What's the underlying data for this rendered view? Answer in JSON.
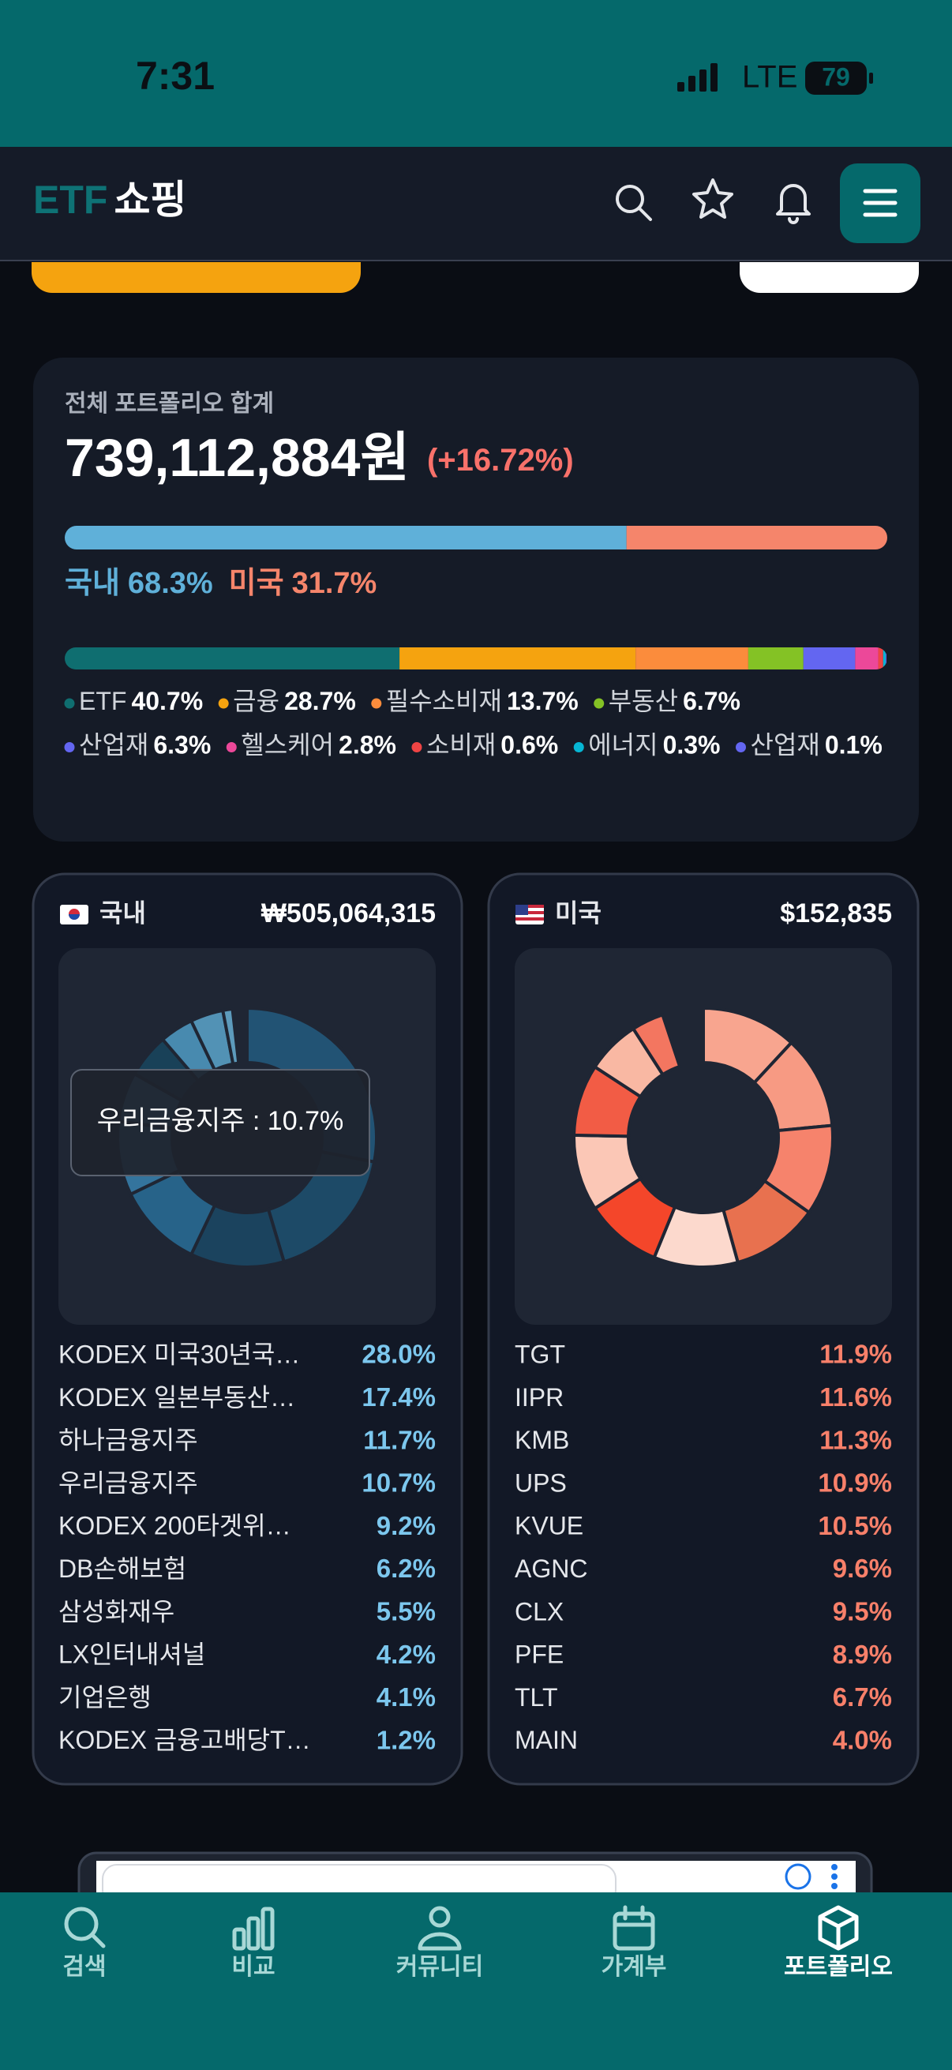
{
  "status_bar": {
    "time": "7:31",
    "network": "LTE",
    "battery": "79"
  },
  "header": {
    "logo_etf": "ETF",
    "logo_shop": "쇼핑"
  },
  "summary": {
    "label": "전체 포트폴리오 합계",
    "total": "739,112,884원",
    "change": "(+16.72%)",
    "regions": [
      {
        "name": "국내",
        "value": 68.3,
        "label": "68.3%",
        "color": "#5fb0d9"
      },
      {
        "name": "미국",
        "value": 31.7,
        "label": "31.7%",
        "color": "#f5856b"
      }
    ],
    "sectors": [
      {
        "name": "ETF",
        "value": 40.7,
        "label": "40.7%",
        "color": "#0f6e70"
      },
      {
        "name": "금융",
        "value": 28.7,
        "label": "28.7%",
        "color": "#f5a30f"
      },
      {
        "name": "필수소비재",
        "value": 13.7,
        "label": "13.7%",
        "color": "#fb8c3c"
      },
      {
        "name": "부동산",
        "value": 6.7,
        "label": "6.7%",
        "color": "#84c225"
      },
      {
        "name": "산업재",
        "value": 6.3,
        "label": "6.3%",
        "color": "#6366f1"
      },
      {
        "name": "헬스케어",
        "value": 2.8,
        "label": "2.8%",
        "color": "#ec4899"
      },
      {
        "name": "소비재",
        "value": 0.6,
        "label": "0.6%",
        "color": "#ef4444"
      },
      {
        "name": "에너지",
        "value": 0.3,
        "label": "0.3%",
        "color": "#06b6d4"
      },
      {
        "name": "산업재",
        "value": 0.1,
        "label": "0.1%",
        "color": "#6366f1"
      }
    ]
  },
  "domestic": {
    "name": "국내",
    "amount": "₩505,064,315",
    "tooltip": "우리금융지주 : 10.7%",
    "value_color": "#7cc7ee",
    "holdings": [
      {
        "name": "KODEX 미국30년국…",
        "value": 28.0,
        "label": "28.0%",
        "color": "#23628a"
      },
      {
        "name": "KODEX 일본부동산…",
        "value": 17.4,
        "label": "17.4%",
        "color": "#1d5679"
      },
      {
        "name": "하나금융지주",
        "value": 11.7,
        "label": "11.7%",
        "color": "#1a4d6c"
      },
      {
        "name": "우리금융지주",
        "value": 10.7,
        "label": "10.7%",
        "color": "#2a78a6"
      },
      {
        "name": "KODEX 200타겟위…",
        "value": 9.2,
        "label": "9.2%",
        "color": "#3b8fc0"
      },
      {
        "name": "DB손해보험",
        "value": 6.2,
        "label": "6.2%",
        "color": "#4a9fcf"
      },
      {
        "name": "삼성화재우",
        "value": 5.5,
        "label": "5.5%",
        "color": "#174a64"
      },
      {
        "name": "LX인터내셔널",
        "value": 4.2,
        "label": "4.2%",
        "color": "#56acd8"
      },
      {
        "name": "기업은행",
        "value": 4.1,
        "label": "4.1%",
        "color": "#63b7e0"
      },
      {
        "name": "KODEX 금융고배당T…",
        "value": 1.2,
        "label": "1.2%",
        "color": "#72c3ea"
      }
    ]
  },
  "us": {
    "name": "미국",
    "amount": "$152,835",
    "value_color": "#f8806a",
    "holdings": [
      {
        "name": "TGT",
        "value": 11.9,
        "label": "11.9%",
        "color": "#f8a58f"
      },
      {
        "name": "IIPR",
        "value": 11.6,
        "label": "11.6%",
        "color": "#f79a83"
      },
      {
        "name": "KMB",
        "value": 11.3,
        "label": "11.3%",
        "color": "#f6836c"
      },
      {
        "name": "UPS",
        "value": 10.9,
        "label": "10.9%",
        "color": "#e8714f"
      },
      {
        "name": "KVUE",
        "value": 10.5,
        "label": "10.5%",
        "color": "#fcd9cd"
      },
      {
        "name": "AGNC",
        "value": 9.6,
        "label": "9.6%",
        "color": "#f4462a"
      },
      {
        "name": "CLX",
        "value": 9.5,
        "label": "9.5%",
        "color": "#fbc7b6"
      },
      {
        "name": "PFE",
        "value": 8.9,
        "label": "8.9%",
        "color": "#f25c45"
      },
      {
        "name": "TLT",
        "value": 6.7,
        "label": "6.7%",
        "color": "#f9b8a3"
      },
      {
        "name": "MAIN",
        "value": 4.0,
        "label": "4.0%",
        "color": "#f37660"
      }
    ]
  },
  "nav": [
    "검색",
    "비교",
    "커뮤니티",
    "가계부",
    "포트폴리오"
  ]
}
